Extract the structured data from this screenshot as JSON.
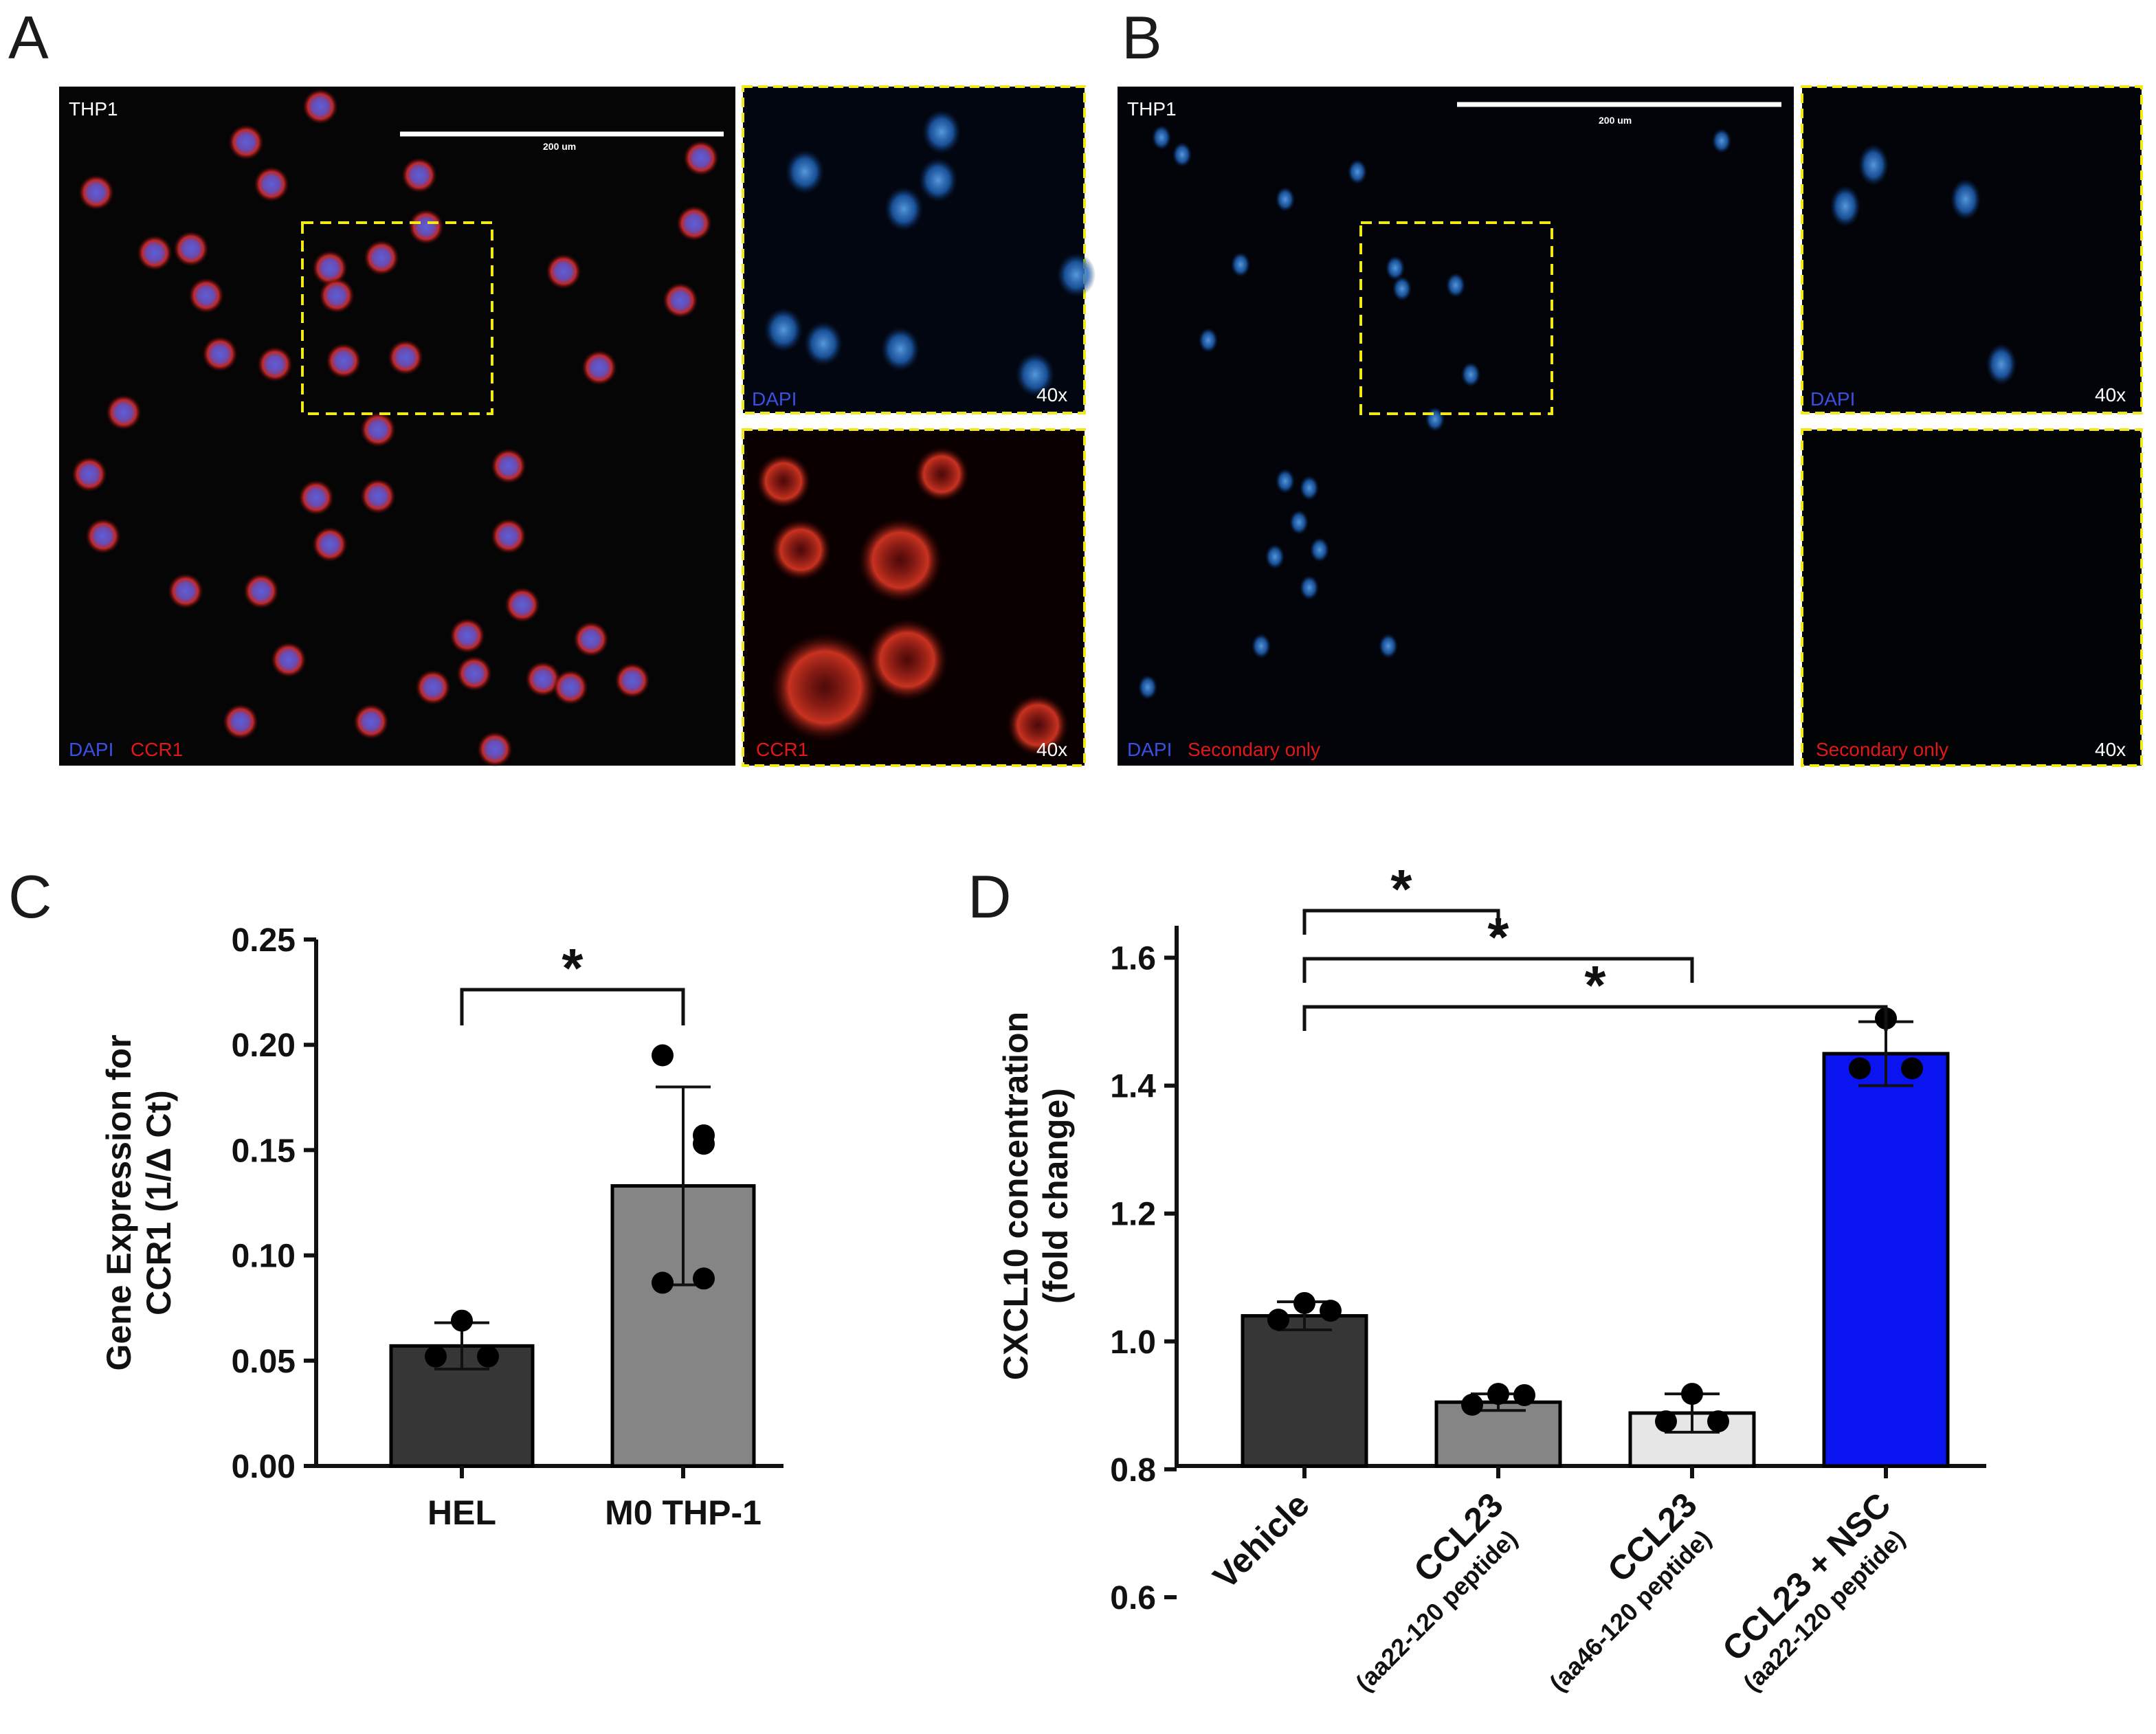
{
  "panels": {
    "a": {
      "letter": "A",
      "main": {
        "cell_line": "THP1",
        "scale_bar": "200 um",
        "label_dapi": "DAPI",
        "label_marker": "CCR1"
      },
      "inset_top": {
        "label": "DAPI",
        "magnification": "40x"
      },
      "inset_bottom": {
        "label": "CCR1",
        "magnification": "40x"
      }
    },
    "b": {
      "letter": "B",
      "main": {
        "cell_line": "THP1",
        "scale_bar": "200 um",
        "label_dapi": "DAPI",
        "label_marker": "Secondary only"
      },
      "inset_top": {
        "label": "DAPI",
        "magnification": "40x"
      },
      "inset_bottom": {
        "label": "Secondary only",
        "magnification": "40x"
      }
    },
    "c": {
      "letter": "C"
    },
    "d": {
      "letter": "D"
    }
  },
  "colors": {
    "dapi": "#3b4fe0",
    "ccr1": "#e01818",
    "inset_border": "#f2ea16",
    "nuclei_blue": "#1e6fc8"
  },
  "chart_data": [
    {
      "type": "bar",
      "title": "",
      "xlabel": "",
      "ylabel": [
        "Gene Expression for",
        "CCR1 (1/Δ Ct)"
      ],
      "ylim": [
        0,
        0.25
      ],
      "yticks": [
        "0.00",
        "0.05",
        "0.10",
        "0.15",
        "0.20",
        "0.25"
      ],
      "categories": [
        "HEL",
        "M0 THP-1"
      ],
      "values": [
        0.057,
        0.133
      ],
      "sd": [
        0.011,
        0.047
      ],
      "bar_colors": [
        "#363636",
        "#858585"
      ],
      "points": [
        [
          0.069,
          0.052,
          0.052
        ],
        [
          0.195,
          0.153,
          0.157,
          0.087,
          0.089
        ]
      ],
      "significance": [
        {
          "from": 0,
          "to": 1,
          "label": "*"
        }
      ],
      "grid": false
    },
    {
      "type": "bar",
      "title": "",
      "xlabel": "",
      "ylabel": [
        "CXCL10 concentration",
        "(fold change)"
      ],
      "ylim": [
        0.5,
        1.65
      ],
      "yticks": [
        "0.6",
        "0.8",
        "1.0",
        "1.2",
        "1.4",
        "1.6"
      ],
      "categories": [
        {
          "main": "Vehicle",
          "sub": ""
        },
        {
          "main": "CCL23",
          "sub": "(aa22-120 peptide)"
        },
        {
          "main": "CCL23",
          "sub": "(aa46-120 peptide)"
        },
        {
          "main": "CCL23 + NSC",
          "sub": "(aa22-120 peptide)"
        }
      ],
      "values": [
        1.04,
        0.905,
        0.888,
        1.45
      ],
      "sd": [
        0.022,
        0.013,
        0.03,
        0.05
      ],
      "bar_colors": [
        "#363636",
        "#858585",
        "#e6e6e6",
        "#0a14f0"
      ],
      "points": [
        [
          1.06,
          1.034,
          1.048
        ],
        [
          0.918,
          0.901,
          0.916
        ],
        [
          0.918,
          0.875,
          0.875
        ],
        [
          1.505,
          1.427,
          1.427
        ]
      ],
      "significance": [
        {
          "from": 0,
          "to": 1,
          "label": "*"
        },
        {
          "from": 0,
          "to": 2,
          "label": "*"
        },
        {
          "from": 0,
          "to": 3,
          "label": "*"
        }
      ],
      "grid": false
    }
  ]
}
